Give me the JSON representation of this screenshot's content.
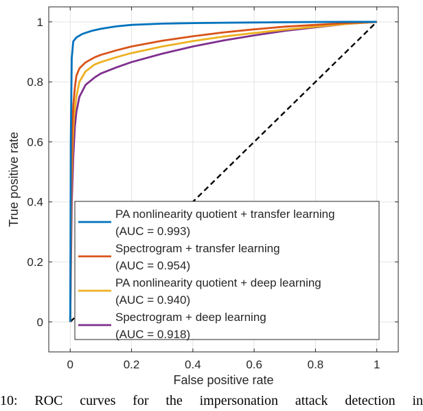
{
  "chart_data": {
    "type": "line",
    "xlabel": "False positive rate",
    "ylabel": "True positive rate",
    "xlim": [
      -0.07,
      1.07
    ],
    "ylim": [
      -0.1,
      1.05
    ],
    "xticks": [
      0,
      0.2,
      0.4,
      0.6,
      0.8,
      1
    ],
    "yticks": [
      0,
      0.2,
      0.4,
      0.6,
      0.8,
      1
    ],
    "xtick_labels": [
      "0",
      "0.2",
      "0.4",
      "0.6",
      "0.8",
      "1"
    ],
    "ytick_labels": [
      "0",
      "0.2",
      "0.4",
      "0.6",
      "0.8",
      "1"
    ],
    "grid": true,
    "legend_position": "bottom-right",
    "series": [
      {
        "label_lines": [
          "PA nonlinearity quotient + transfer learning",
          "(AUC = 0.993)"
        ],
        "color": "#0072BD",
        "x": [
          0,
          0.002,
          0.005,
          0.01,
          0.02,
          0.04,
          0.07,
          0.1,
          0.15,
          0.2,
          0.3,
          0.4,
          0.5,
          0.6,
          0.7,
          0.8,
          0.9,
          1
        ],
        "y": [
          0,
          0.6,
          0.88,
          0.935,
          0.948,
          0.96,
          0.97,
          0.977,
          0.985,
          0.99,
          0.994,
          0.996,
          0.997,
          0.998,
          0.999,
          0.9995,
          1,
          1
        ]
      },
      {
        "label_lines": [
          "Spectrogram + transfer learning",
          "(AUC = 0.954)"
        ],
        "color": "#D95319",
        "x": [
          0,
          0.003,
          0.006,
          0.01,
          0.015,
          0.02,
          0.03,
          0.05,
          0.08,
          0.1,
          0.15,
          0.2,
          0.3,
          0.4,
          0.5,
          0.6,
          0.7,
          0.8,
          0.9,
          1
        ],
        "y": [
          0,
          0.45,
          0.62,
          0.72,
          0.78,
          0.82,
          0.845,
          0.865,
          0.882,
          0.89,
          0.905,
          0.918,
          0.937,
          0.952,
          0.965,
          0.975,
          0.984,
          0.99,
          0.996,
          1
        ]
      },
      {
        "label_lines": [
          "PA nonlinearity quotient + deep learning",
          "(AUC = 0.940)"
        ],
        "color": "#EDB120",
        "x": [
          0,
          0.004,
          0.008,
          0.012,
          0.02,
          0.03,
          0.05,
          0.08,
          0.1,
          0.15,
          0.2,
          0.3,
          0.4,
          0.5,
          0.6,
          0.7,
          0.8,
          0.9,
          1
        ],
        "y": [
          0,
          0.45,
          0.6,
          0.68,
          0.75,
          0.8,
          0.835,
          0.858,
          0.866,
          0.882,
          0.896,
          0.918,
          0.936,
          0.951,
          0.963,
          0.974,
          0.984,
          0.993,
          1
        ]
      },
      {
        "label_lines": [
          "Spectrogram + deep learning",
          "(AUC = 0.918)"
        ],
        "color": "#7E2F8E",
        "x": [
          0,
          0.005,
          0.01,
          0.015,
          0.02,
          0.03,
          0.05,
          0.08,
          0.1,
          0.15,
          0.2,
          0.3,
          0.4,
          0.5,
          0.6,
          0.7,
          0.8,
          0.9,
          1
        ],
        "y": [
          0,
          0.4,
          0.55,
          0.65,
          0.7,
          0.75,
          0.79,
          0.815,
          0.828,
          0.848,
          0.866,
          0.894,
          0.918,
          0.938,
          0.955,
          0.97,
          0.982,
          0.993,
          1
        ]
      },
      {
        "color": "#000000",
        "dashed": true,
        "x": [
          0,
          1
        ],
        "y": [
          0,
          1
        ]
      }
    ]
  },
  "caption": "10: ROC curves for the impersonation attack detection in"
}
